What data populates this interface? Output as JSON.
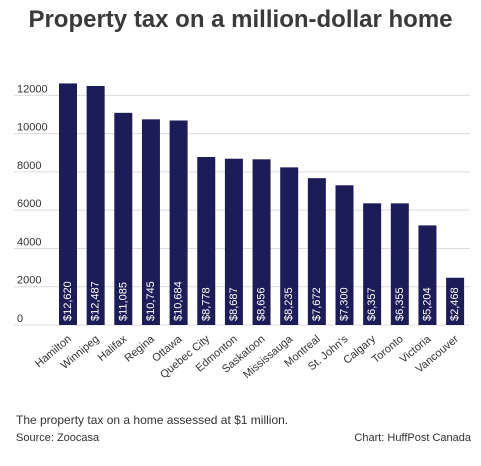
{
  "chart_data": {
    "type": "bar",
    "title": "Property tax on a million-dollar home",
    "categories": [
      "Hamilton",
      "Winnipeg",
      "Halifax",
      "Regina",
      "Ottawa",
      "Quebec City",
      "Edmonton",
      "Saskatoon",
      "Mississauga",
      "Montreal",
      "St. John's",
      "Calgary",
      "Toronto",
      "Victoria",
      "Vancouver"
    ],
    "values": [
      12620,
      12487,
      11085,
      10745,
      10684,
      8778,
      8687,
      8656,
      8235,
      7672,
      7300,
      6357,
      6355,
      5204,
      2468
    ],
    "data_labels": [
      "$12,620",
      "$12,487",
      "$11,085",
      "$10,745",
      "$10,684",
      "$8,778",
      "$8,687",
      "$8,656",
      "$8,235",
      "$7,672",
      "$7,300",
      "$6,357",
      "$6,355",
      "$5,204",
      "$2,468"
    ],
    "yticks": [
      0,
      2000,
      4000,
      6000,
      8000,
      10000,
      12000
    ],
    "ylim": [
      0,
      12800
    ],
    "xlabel": "",
    "ylabel": "",
    "grid": true,
    "bar_color": "#1c1c58"
  },
  "caption": "The property tax on a home assessed at $1 million.",
  "source": "Source: Zoocasa",
  "credit": "Chart: HuffPost Canada"
}
